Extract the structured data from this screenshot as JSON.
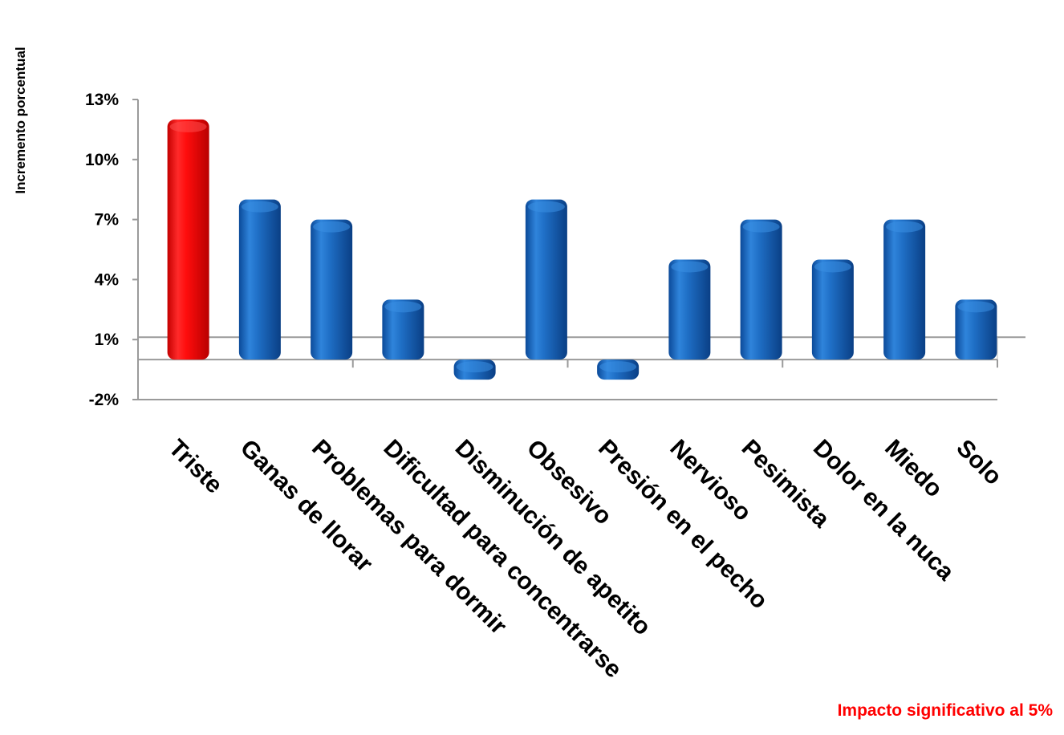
{
  "chart_data": {
    "type": "bar",
    "ylabel": "Incremento porcentual",
    "xlabel": "",
    "title": "",
    "categories": [
      "Triste",
      "Ganas de llorar",
      "Problemas para dormir",
      "Dificultad para concentrarse",
      "Disminución de apetito",
      "Obsesivo",
      "Presión en el pecho",
      "Nervioso",
      "Pesimista",
      "Dolor en la nuca",
      "Miedo",
      "Solo"
    ],
    "values": [
      12,
      8,
      7,
      3,
      -1,
      8,
      -1,
      5,
      7,
      5,
      7,
      3
    ],
    "significant": [
      true,
      false,
      false,
      false,
      false,
      false,
      false,
      false,
      false,
      false,
      false,
      false
    ],
    "yticks": [
      "13%",
      "10%",
      "7%",
      "4%",
      "1%",
      "-2%"
    ],
    "ytick_values": [
      13,
      10,
      7,
      4,
      1,
      -2
    ],
    "ylim": [
      -2,
      13
    ],
    "colors": {
      "significant": "#ff0000",
      "default": "#1565c0"
    },
    "note": "Impacto significativo al 5%"
  }
}
